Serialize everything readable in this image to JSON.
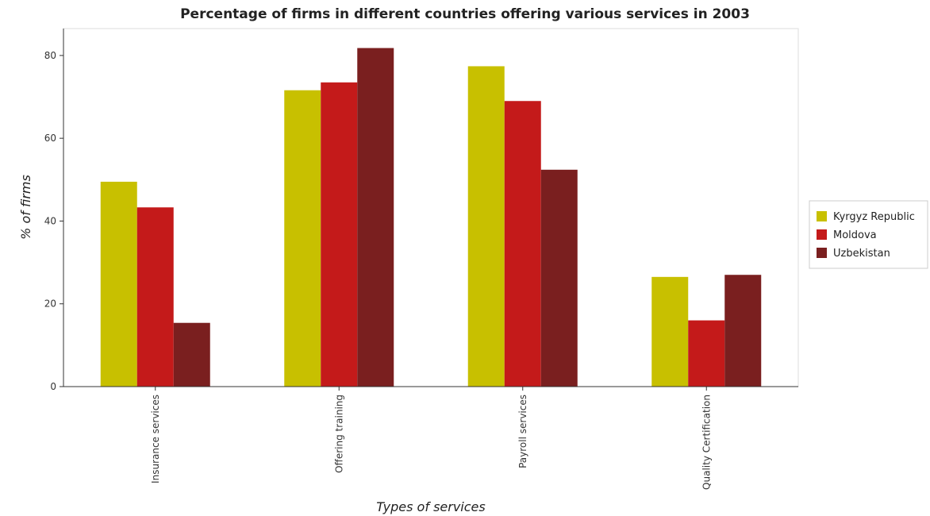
{
  "title": "Percentage of firms in different countries offering various services in 2003",
  "colors": {
    "Kyrgyz Republic": "#c8c000",
    "Moldova": "#c41a1a",
    "Uzbekistan": "#7a1f1f"
  },
  "chart_data": {
    "type": "bar",
    "title": "Percentage of firms in different countries offering various services in 2003",
    "xlabel": "Types of services",
    "ylabel": "% of firms",
    "categories": [
      "Insurance services",
      "Offering training",
      "Payroll services",
      "Quality Certification"
    ],
    "series": [
      {
        "name": "Kyrgyz Republic",
        "values": [
          49.5,
          71.6,
          77.4,
          26.5
        ]
      },
      {
        "name": "Moldova",
        "values": [
          43.3,
          73.5,
          69.0,
          16.0
        ]
      },
      {
        "name": "Uzbekistan",
        "values": [
          15.4,
          81.8,
          52.4,
          27.0
        ]
      }
    ],
    "ylim": [
      0,
      86.5
    ],
    "yticks": [
      0,
      20,
      40,
      60,
      80
    ],
    "grid": false,
    "legend_position": "right"
  }
}
